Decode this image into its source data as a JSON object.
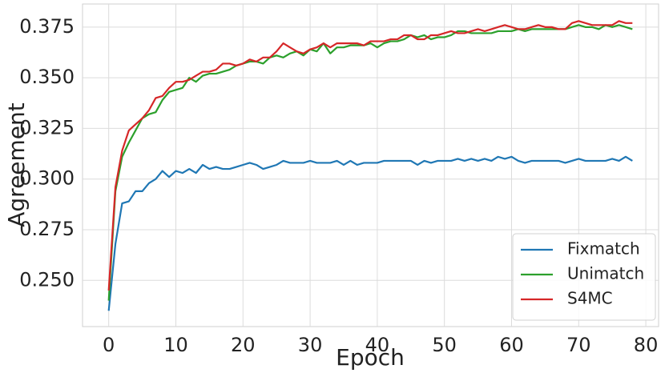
{
  "chart_data": {
    "type": "line",
    "x_label": "Epoch",
    "y_label": "Agreement",
    "x": [
      0,
      1,
      2,
      3,
      4,
      5,
      6,
      7,
      8,
      9,
      10,
      11,
      12,
      13,
      14,
      15,
      16,
      17,
      18,
      19,
      20,
      21,
      22,
      23,
      24,
      25,
      26,
      27,
      28,
      29,
      30,
      31,
      32,
      33,
      34,
      35,
      36,
      37,
      38,
      39,
      40,
      41,
      42,
      43,
      44,
      45,
      46,
      47,
      48,
      49,
      50,
      51,
      52,
      53,
      54,
      55,
      56,
      57,
      58,
      59,
      60,
      61,
      62,
      63,
      64,
      65,
      66,
      67,
      68,
      69,
      70,
      71,
      72,
      73,
      74,
      75,
      76,
      77,
      78
    ],
    "series": [
      {
        "name": "Fixmatch",
        "color": "#1f77b4",
        "values": [
          0.235,
          0.268,
          0.288,
          0.289,
          0.294,
          0.294,
          0.298,
          0.3,
          0.304,
          0.301,
          0.304,
          0.303,
          0.305,
          0.303,
          0.307,
          0.305,
          0.306,
          0.305,
          0.305,
          0.306,
          0.307,
          0.308,
          0.307,
          0.305,
          0.306,
          0.307,
          0.309,
          0.308,
          0.308,
          0.308,
          0.309,
          0.308,
          0.308,
          0.308,
          0.309,
          0.307,
          0.309,
          0.307,
          0.308,
          0.308,
          0.308,
          0.309,
          0.309,
          0.309,
          0.309,
          0.309,
          0.307,
          0.309,
          0.308,
          0.309,
          0.309,
          0.309,
          0.31,
          0.309,
          0.31,
          0.309,
          0.31,
          0.309,
          0.311,
          0.31,
          0.311,
          0.309,
          0.308,
          0.309,
          0.309,
          0.309,
          0.309,
          0.309,
          0.308,
          0.309,
          0.31,
          0.309,
          0.309,
          0.309,
          0.309,
          0.31,
          0.309,
          0.311,
          0.309
        ]
      },
      {
        "name": "Unimatch",
        "color": "#2ca02c",
        "values": [
          0.24,
          0.294,
          0.311,
          0.318,
          0.324,
          0.33,
          0.332,
          0.333,
          0.339,
          0.343,
          0.344,
          0.345,
          0.35,
          0.348,
          0.351,
          0.352,
          0.352,
          0.353,
          0.354,
          0.356,
          0.357,
          0.358,
          0.358,
          0.357,
          0.36,
          0.361,
          0.36,
          0.362,
          0.363,
          0.361,
          0.364,
          0.363,
          0.367,
          0.362,
          0.365,
          0.365,
          0.366,
          0.366,
          0.366,
          0.367,
          0.365,
          0.367,
          0.368,
          0.368,
          0.369,
          0.371,
          0.37,
          0.371,
          0.369,
          0.37,
          0.37,
          0.371,
          0.373,
          0.373,
          0.372,
          0.372,
          0.372,
          0.372,
          0.373,
          0.373,
          0.373,
          0.374,
          0.373,
          0.374,
          0.374,
          0.374,
          0.374,
          0.374,
          0.374,
          0.375,
          0.376,
          0.375,
          0.375,
          0.374,
          0.376,
          0.375,
          0.376,
          0.375,
          0.374
        ]
      },
      {
        "name": "S4MC",
        "color": "#d62728",
        "values": [
          0.245,
          0.296,
          0.314,
          0.324,
          0.327,
          0.33,
          0.334,
          0.34,
          0.341,
          0.345,
          0.348,
          0.348,
          0.349,
          0.351,
          0.353,
          0.353,
          0.354,
          0.357,
          0.357,
          0.356,
          0.357,
          0.359,
          0.358,
          0.36,
          0.36,
          0.363,
          0.367,
          0.365,
          0.363,
          0.362,
          0.364,
          0.365,
          0.367,
          0.365,
          0.367,
          0.367,
          0.367,
          0.367,
          0.366,
          0.368,
          0.368,
          0.368,
          0.369,
          0.369,
          0.371,
          0.371,
          0.369,
          0.369,
          0.371,
          0.371,
          0.372,
          0.373,
          0.372,
          0.372,
          0.373,
          0.374,
          0.373,
          0.374,
          0.375,
          0.376,
          0.375,
          0.374,
          0.374,
          0.375,
          0.376,
          0.375,
          0.375,
          0.374,
          0.374,
          0.377,
          0.378,
          0.377,
          0.376,
          0.376,
          0.376,
          0.376,
          0.378,
          0.377,
          0.377
        ]
      }
    ],
    "xlim": [
      -3.9,
      81.9
    ],
    "xticks": [
      0,
      10,
      20,
      30,
      40,
      50,
      60,
      70,
      80
    ],
    "ylim": [
      0.2272,
      0.3864
    ],
    "yticks": [
      {
        "value": 0.25,
        "label": "0.250"
      },
      0.275,
      {
        "value": 0.3,
        "label": "0.300"
      },
      0.325,
      {
        "value": 0.35,
        "label": "0.350"
      },
      0.375
    ],
    "grid": true,
    "legend": "lower right"
  }
}
